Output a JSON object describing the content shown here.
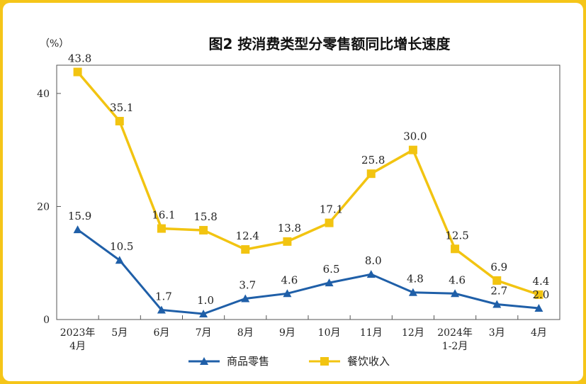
{
  "chart_data": {
    "type": "line",
    "title": "图2  按消费类型分零售额同比增长速度",
    "unit_label": "（%）",
    "categories": [
      [
        "2023年",
        "4月"
      ],
      [
        "5月"
      ],
      [
        "6月"
      ],
      [
        "7月"
      ],
      [
        "8月"
      ],
      [
        "9月"
      ],
      [
        "10月"
      ],
      [
        "11月"
      ],
      [
        "12月"
      ],
      [
        "2024年",
        "1-2月"
      ],
      [
        "3月"
      ],
      [
        "4月"
      ]
    ],
    "ylim": [
      0,
      45
    ],
    "yticks": [
      0,
      20,
      40
    ],
    "series": [
      {
        "name": "商品零售",
        "color": "#1f5fa8",
        "marker": "triangle",
        "values": [
          15.9,
          10.5,
          1.7,
          1.0,
          3.7,
          4.6,
          6.5,
          8.0,
          4.8,
          4.6,
          2.7,
          2.0
        ]
      },
      {
        "name": "餐饮收入",
        "color": "#f2c411",
        "marker": "square",
        "values": [
          43.8,
          35.1,
          16.1,
          15.8,
          12.4,
          13.8,
          17.1,
          25.8,
          30.0,
          12.5,
          6.9,
          4.4
        ]
      }
    ],
    "legend_position": "bottom-center",
    "grid": false
  }
}
